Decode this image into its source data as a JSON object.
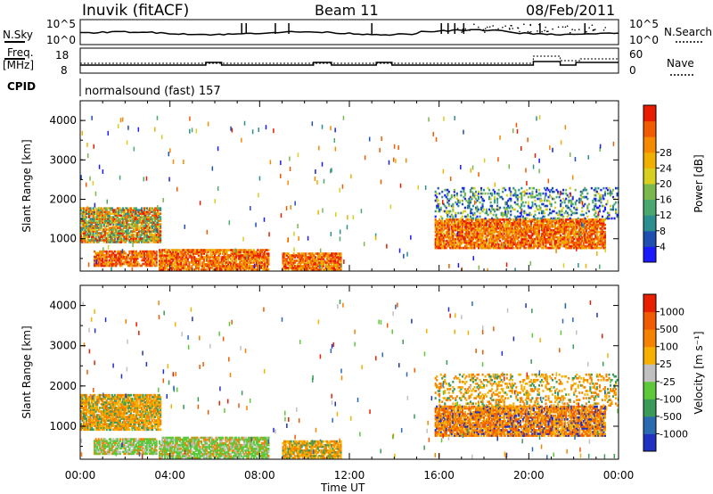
{
  "header": {
    "station": "Inuvik (fitACF)",
    "beam": "Beam 11",
    "date": "08/Feb/2011"
  },
  "strips": {
    "nsky_label": "N.Sky",
    "nsky_ticks": [
      "10^5",
      "10^0"
    ],
    "nsearch_label": "N.Search",
    "freq_label_1": "Freq.",
    "freq_label_2": "[MHz]",
    "freq_ticks": [
      "18",
      "8"
    ],
    "nave_ticks": [
      "60",
      "0"
    ],
    "nave_label": "Nave",
    "cpid_label": "CPID",
    "cpid_text": "normalsound (fast) 157"
  },
  "chart_data": [
    {
      "type": "heatmap",
      "name_field": "power",
      "ylabel": "Slant Range [km]",
      "xlabel": "Time UT",
      "x_ticks": [
        "00:00",
        "04:00",
        "08:00",
        "12:00",
        "16:00",
        "20:00",
        "00:00"
      ],
      "y_ticks": [
        "1000",
        "2000",
        "3000",
        "4000"
      ],
      "ylim": [
        180,
        4500
      ],
      "xlim_hours": [
        0,
        24
      ],
      "colorbar": {
        "label": "Power [dB]",
        "ticks": [
          "4",
          "8",
          "12",
          "16",
          "20",
          "24",
          "28"
        ],
        "colors": [
          "#1a1aff",
          "#1f4fb0",
          "#2b8f8f",
          "#4aa86e",
          "#7ab84e",
          "#d8d020",
          "#f0b000",
          "#f58a00",
          "#f25a00",
          "#e81c00"
        ]
      },
      "echo_regions": [
        {
          "t": [
            0.0,
            3.6
          ],
          "r": [
            900,
            1800
          ],
          "level": "mid"
        },
        {
          "t": [
            0.6,
            3.4
          ],
          "r": [
            300,
            700
          ],
          "level": "high"
        },
        {
          "t": [
            3.5,
            8.4
          ],
          "r": [
            200,
            700
          ],
          "level": "high"
        },
        {
          "t": [
            9.0,
            11.6
          ],
          "r": [
            200,
            650
          ],
          "level": "high"
        },
        {
          "t": [
            15.8,
            23.4
          ],
          "r": [
            750,
            1500
          ],
          "level": "high"
        },
        {
          "t": [
            15.8,
            24.0
          ],
          "r": [
            1500,
            2300
          ],
          "level": "low"
        }
      ]
    },
    {
      "type": "heatmap",
      "name_field": "velocity",
      "ylabel": "Slant Range [km]",
      "xlabel": "Time UT",
      "x_ticks": [
        "00:00",
        "04:00",
        "08:00",
        "12:00",
        "16:00",
        "20:00",
        "00:00"
      ],
      "y_ticks": [
        "1000",
        "2000",
        "3000",
        "4000"
      ],
      "ylim": [
        180,
        4500
      ],
      "xlim_hours": [
        0,
        24
      ],
      "colorbar": {
        "label": "Velocity [m s⁻¹]",
        "ticks": [
          "1000",
          "500",
          "100",
          "25",
          "-25",
          "-100",
          "-500",
          "-1000"
        ],
        "colors": [
          "#2030c0",
          "#2a6ab0",
          "#3a9a5a",
          "#5cc83a",
          "#c0c0c0",
          "#f5b000",
          "#f58200",
          "#f05a00",
          "#e82000"
        ]
      }
    }
  ],
  "colors": {
    "frame": "#000000",
    "orange": "#f58a00",
    "red": "#e81c00",
    "green": "#5cc83a",
    "blue": "#2030c0"
  }
}
